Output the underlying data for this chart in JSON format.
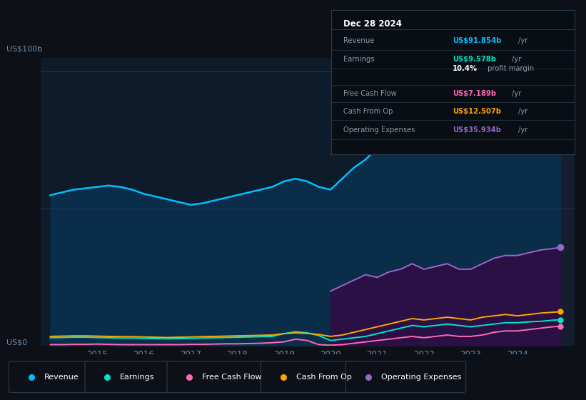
{
  "bg_color": "#0d1117",
  "plot_bg_color": "#0d1b2a",
  "grid_color": "#253550",
  "years": [
    2014.0,
    2014.25,
    2014.5,
    2014.75,
    2015.0,
    2015.25,
    2015.5,
    2015.75,
    2016.0,
    2016.25,
    2016.5,
    2016.75,
    2017.0,
    2017.25,
    2017.5,
    2017.75,
    2018.0,
    2018.25,
    2018.5,
    2018.75,
    2019.0,
    2019.25,
    2019.5,
    2019.75,
    2020.0,
    2020.25,
    2020.5,
    2020.75,
    2021.0,
    2021.25,
    2021.5,
    2021.75,
    2022.0,
    2022.25,
    2022.5,
    2022.75,
    2023.0,
    2023.25,
    2023.5,
    2023.75,
    2024.0,
    2024.25,
    2024.5,
    2024.75,
    2024.92
  ],
  "revenue": [
    55,
    56,
    57,
    57.5,
    58,
    58.5,
    58,
    57,
    55.5,
    54.5,
    53.5,
    52.5,
    51.5,
    52,
    53,
    54,
    55,
    56,
    57,
    58,
    60,
    61,
    60,
    58,
    57,
    61,
    65,
    68,
    72,
    75,
    78,
    81,
    80,
    81,
    83,
    85,
    83,
    85,
    87,
    89,
    87,
    88,
    89,
    91,
    91.854
  ],
  "earnings": [
    3.0,
    3.1,
    3.2,
    3.2,
    3.1,
    3.0,
    2.9,
    2.9,
    2.8,
    2.7,
    2.6,
    2.7,
    2.8,
    2.9,
    3.0,
    3.1,
    3.2,
    3.3,
    3.4,
    3.5,
    4.5,
    5.2,
    4.8,
    3.8,
    2.0,
    2.5,
    3.0,
    3.5,
    4.5,
    5.5,
    6.5,
    7.5,
    7.0,
    7.5,
    8.0,
    7.5,
    7.0,
    7.5,
    8.0,
    8.5,
    8.5,
    8.8,
    9.0,
    9.4,
    9.578
  ],
  "free_cash_flow": [
    0.5,
    0.5,
    0.6,
    0.6,
    0.7,
    0.6,
    0.5,
    0.5,
    0.5,
    0.5,
    0.5,
    0.5,
    0.6,
    0.6,
    0.7,
    0.8,
    0.8,
    0.9,
    1.0,
    1.2,
    1.5,
    2.5,
    2.0,
    0.5,
    0.3,
    0.5,
    1.0,
    1.5,
    2.0,
    2.5,
    3.0,
    3.5,
    3.0,
    3.5,
    4.0,
    3.5,
    3.5,
    4.0,
    5.0,
    5.5,
    5.5,
    6.0,
    6.5,
    7.0,
    7.189
  ],
  "cash_from_op": [
    3.5,
    3.6,
    3.7,
    3.7,
    3.6,
    3.5,
    3.4,
    3.4,
    3.3,
    3.2,
    3.1,
    3.2,
    3.3,
    3.4,
    3.5,
    3.6,
    3.7,
    3.8,
    3.9,
    4.0,
    4.5,
    4.8,
    4.6,
    4.2,
    3.5,
    4.0,
    5.0,
    6.0,
    7.0,
    8.0,
    9.0,
    10.0,
    9.5,
    10.0,
    10.5,
    10.0,
    9.5,
    10.5,
    11.0,
    11.5,
    11.0,
    11.5,
    12.0,
    12.3,
    12.507
  ],
  "operating_expenses": [
    0.0,
    0.0,
    0.0,
    0.0,
    0.0,
    0.0,
    0.0,
    0.0,
    0.0,
    0.0,
    0.0,
    0.0,
    0.0,
    0.0,
    0.0,
    0.0,
    0.0,
    0.0,
    0.0,
    0.0,
    0.0,
    0.0,
    0.0,
    0.0,
    20.0,
    22.0,
    24.0,
    26.0,
    25.0,
    27.0,
    28.0,
    30.0,
    28.0,
    29.0,
    30.0,
    28.0,
    28.0,
    30.0,
    32.0,
    33.0,
    33.0,
    34.0,
    35.0,
    35.5,
    35.934
  ],
  "x_ticks": [
    2015,
    2016,
    2017,
    2018,
    2019,
    2020,
    2021,
    2022,
    2023,
    2024
  ],
  "ylim": [
    0,
    105
  ],
  "revenue_color": "#00bfff",
  "earnings_color": "#00e5cc",
  "fcf_color": "#ff69b4",
  "cashop_color": "#ffa500",
  "opex_color": "#9966cc",
  "revenue_fill": "#0a2d4a",
  "opex_fill": "#2a1045",
  "legend": [
    {
      "label": "Revenue",
      "color": "#00bfff"
    },
    {
      "label": "Earnings",
      "color": "#00e5cc"
    },
    {
      "label": "Free Cash Flow",
      "color": "#ff69b4"
    },
    {
      "label": "Cash From Op",
      "color": "#ffa500"
    },
    {
      "label": "Operating Expenses",
      "color": "#9966cc"
    }
  ],
  "infobox": {
    "date": "Dec 28 2024",
    "rows": [
      {
        "label": "Revenue",
        "value": "US$91.854b",
        "unit": "/yr",
        "color": "#00bfff",
        "extra": null
      },
      {
        "label": "Earnings",
        "value": "US$9.578b",
        "unit": "/yr",
        "color": "#00e5cc",
        "extra": null
      },
      {
        "label": "",
        "value": "10.4%",
        "unit": " profit margin",
        "color": "#ffffff",
        "extra": null
      },
      {
        "label": "Free Cash Flow",
        "value": "US$7.189b",
        "unit": "/yr",
        "color": "#ff69b4",
        "extra": null
      },
      {
        "label": "Cash From Op",
        "value": "US$12.507b",
        "unit": "/yr",
        "color": "#ffa500",
        "extra": null
      },
      {
        "label": "Operating Expenses",
        "value": "US$35.934b",
        "unit": "/yr",
        "color": "#9966cc",
        "extra": null
      }
    ]
  }
}
